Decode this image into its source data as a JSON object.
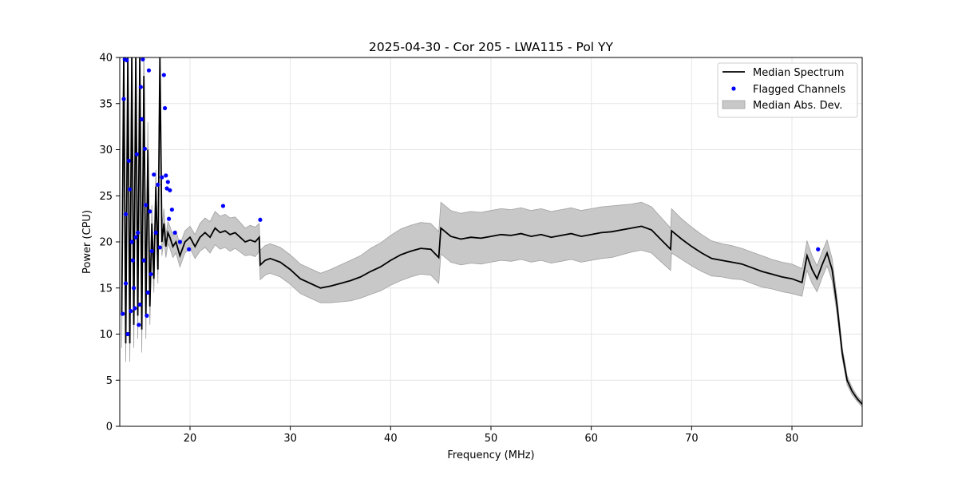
{
  "chart_data": {
    "type": "line",
    "title": "2025-04-30 - Cor 205 - LWA115 - Pol YY",
    "xlabel": "Frequency (MHz)",
    "ylabel": "Power (CPU)",
    "xlim": [
      13,
      87
    ],
    "ylim": [
      0,
      40
    ],
    "xticks": [
      20,
      30,
      40,
      50,
      60,
      70,
      80
    ],
    "yticks": [
      0,
      5,
      10,
      15,
      20,
      25,
      30,
      35,
      40
    ],
    "grid": true,
    "legend_position": "top-right",
    "legend": [
      "Median Spectrum",
      "Flagged Channels",
      "Median Abs. Dev."
    ],
    "colors": {
      "median": "#000000",
      "flagged": "#0000ff",
      "mad_fill": "#c8c8c8",
      "mad_edge": "#a0a0a0"
    },
    "median_spectrum": {
      "x": [
        13.2,
        13.4,
        13.6,
        13.8,
        14.0,
        14.2,
        14.4,
        14.6,
        14.8,
        15.0,
        15.2,
        15.4,
        15.6,
        15.8,
        16.0,
        16.2,
        16.4,
        16.6,
        16.8,
        17.0,
        17.2,
        17.4,
        17.6,
        17.8,
        18.0,
        18.3,
        18.6,
        19.0,
        19.5,
        20.0,
        20.5,
        21.0,
        21.5,
        22.0,
        22.5,
        23.0,
        23.5,
        24.0,
        24.5,
        25.0,
        25.5,
        26.0,
        26.5,
        26.9,
        27.0,
        27.5,
        28.0,
        29.0,
        30.0,
        31.0,
        32.0,
        33.0,
        34.0,
        35.0,
        36.0,
        37.0,
        38.0,
        39.0,
        40.0,
        41.0,
        42.0,
        43.0,
        44.0,
        44.8,
        45.0,
        46.0,
        47.0,
        48.0,
        49.0,
        50.0,
        51.0,
        52.0,
        53.0,
        54.0,
        55.0,
        56.0,
        57.0,
        58.0,
        59.0,
        60.0,
        61.0,
        62.0,
        63.0,
        64.0,
        65.0,
        66.0,
        67.0,
        67.9,
        68.0,
        69.0,
        70.0,
        71.0,
        72.0,
        73.0,
        74.0,
        75.0,
        76.0,
        77.0,
        78.0,
        79.0,
        80.0,
        81.0,
        81.5,
        82.0,
        82.5,
        83.0,
        83.5,
        84.0,
        84.5,
        85.0,
        85.5,
        86.0,
        86.5,
        87.0
      ],
      "y": [
        12.0,
        40.0,
        9.0,
        40.0,
        9.0,
        40.0,
        11.0,
        40.0,
        12.0,
        40.0,
        10.5,
        38.0,
        12.0,
        30.0,
        13.0,
        22.0,
        16.0,
        26.0,
        17.0,
        40.0,
        20.0,
        22.0,
        19.5,
        21.0,
        20.5,
        19.5,
        20.0,
        18.5,
        20.0,
        20.5,
        19.5,
        20.5,
        21.0,
        20.5,
        21.5,
        21.0,
        21.2,
        20.8,
        21.0,
        20.5,
        20.0,
        20.2,
        20.0,
        20.5,
        17.5,
        18.0,
        18.2,
        17.8,
        17.0,
        16.0,
        15.5,
        15.0,
        15.2,
        15.5,
        15.8,
        16.2,
        16.8,
        17.3,
        18.0,
        18.6,
        19.0,
        19.3,
        19.2,
        18.3,
        21.5,
        20.6,
        20.3,
        20.5,
        20.4,
        20.6,
        20.8,
        20.7,
        20.9,
        20.6,
        20.8,
        20.5,
        20.7,
        20.9,
        20.6,
        20.8,
        21.0,
        21.1,
        21.3,
        21.5,
        21.7,
        21.3,
        20.2,
        19.2,
        21.2,
        20.3,
        19.5,
        18.8,
        18.2,
        18.0,
        17.8,
        17.6,
        17.2,
        16.8,
        16.5,
        16.2,
        16.0,
        15.6,
        18.5,
        17.0,
        16.0,
        17.5,
        18.8,
        17.0,
        13.0,
        8.0,
        5.0,
        3.8,
        3.0,
        2.4
      ],
      "mad": [
        3.5,
        4.0,
        2.0,
        4.0,
        2.0,
        4.0,
        2.5,
        4.0,
        2.5,
        4.0,
        2.5,
        4.0,
        2.5,
        3.0,
        2.0,
        2.0,
        1.5,
        1.8,
        1.5,
        2.0,
        1.5,
        1.6,
        1.2,
        1.2,
        1.2,
        1.2,
        1.2,
        1.2,
        1.2,
        1.2,
        1.3,
        1.5,
        1.6,
        1.7,
        1.8,
        1.8,
        1.8,
        1.8,
        1.7,
        1.6,
        1.5,
        1.6,
        1.6,
        1.5,
        1.6,
        1.6,
        1.6,
        1.6,
        1.6,
        1.6,
        1.6,
        1.6,
        1.8,
        2.0,
        2.2,
        2.3,
        2.5,
        2.6,
        2.7,
        2.8,
        2.8,
        2.8,
        2.8,
        2.8,
        2.8,
        2.8,
        2.8,
        2.8,
        2.8,
        2.8,
        2.8,
        2.8,
        2.8,
        2.8,
        2.8,
        2.8,
        2.8,
        2.8,
        2.8,
        2.8,
        2.8,
        2.8,
        2.7,
        2.6,
        2.6,
        2.5,
        2.4,
        2.3,
        2.4,
        2.2,
        2.1,
        2.0,
        1.9,
        1.8,
        1.8,
        1.7,
        1.7,
        1.7,
        1.6,
        1.6,
        1.6,
        1.5,
        1.6,
        1.5,
        1.4,
        1.4,
        1.4,
        1.2,
        0.9,
        0.6,
        0.5,
        0.4,
        0.3,
        0.3
      ]
    },
    "flagged_channels": {
      "x": [
        13.3,
        13.4,
        13.5,
        13.6,
        13.6,
        13.7,
        13.8,
        13.9,
        14.0,
        14.1,
        14.2,
        14.3,
        14.4,
        14.5,
        14.6,
        14.7,
        14.8,
        14.9,
        15.0,
        15.1,
        15.2,
        15.3,
        15.4,
        15.5,
        15.6,
        15.7,
        15.8,
        15.9,
        16.0,
        16.1,
        16.2,
        16.4,
        16.6,
        16.8,
        17.0,
        17.2,
        17.4,
        17.5,
        17.6,
        17.7,
        17.8,
        17.9,
        18.0,
        18.2,
        18.5,
        19.0,
        19.9,
        23.3,
        27.0,
        82.6
      ],
      "y": [
        12.2,
        35.5,
        39.8,
        23.0,
        15.5,
        39.7,
        10.0,
        28.8,
        25.7,
        12.5,
        20.0,
        18.0,
        15.0,
        12.8,
        20.5,
        29.5,
        21.0,
        11.0,
        13.2,
        36.8,
        33.3,
        39.8,
        18.0,
        30.1,
        24.0,
        12.0,
        14.5,
        38.6,
        23.3,
        16.5,
        19.0,
        27.3,
        21.0,
        26.2,
        19.4,
        27.0,
        38.1,
        34.5,
        27.2,
        25.8,
        26.5,
        22.5,
        25.6,
        23.5,
        21.0,
        20.0,
        19.2,
        23.9,
        22.4,
        19.2
      ]
    }
  }
}
